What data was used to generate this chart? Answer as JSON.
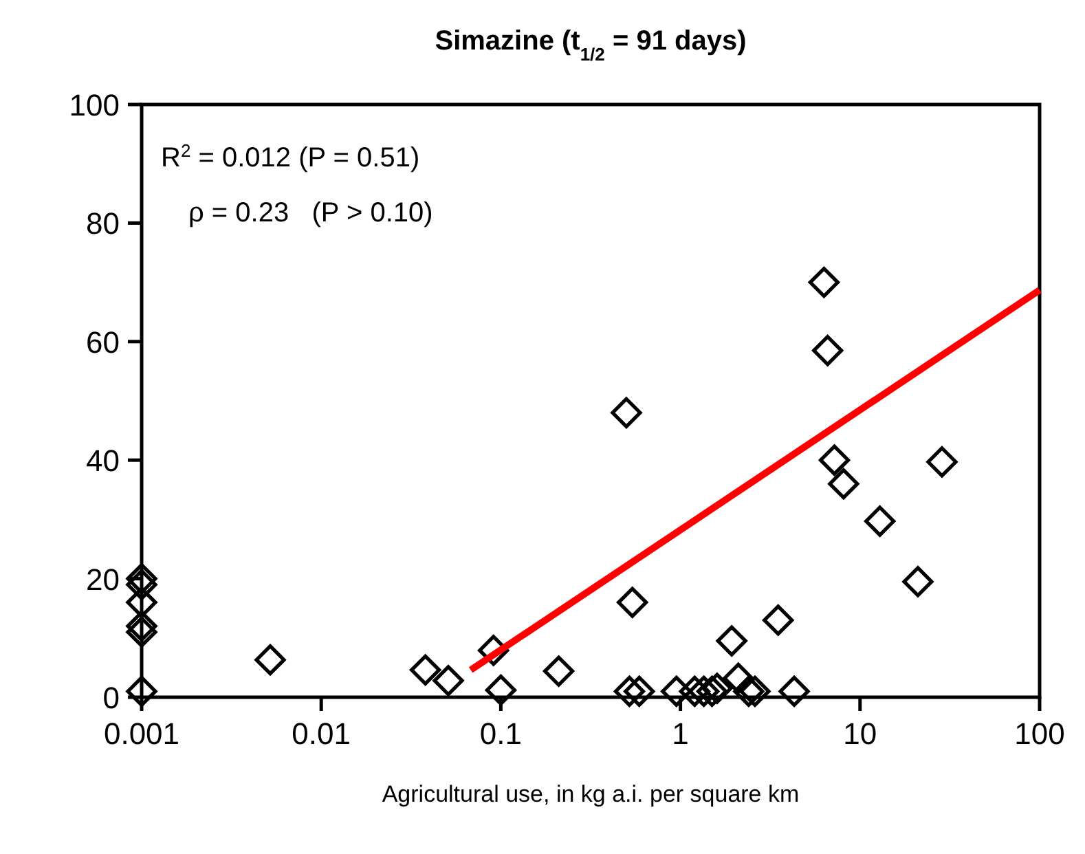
{
  "chart_data": {
    "type": "scatter",
    "title": "Simazine (t$_{1/2}$ = 91 days)",
    "xlabel": "Agricultural use, in kg a.i. per square km",
    "log": "x",
    "grid": false,
    "marker": "diamond",
    "xlim": [
      0.001,
      100
    ],
    "xticks": [
      0.001,
      0.01,
      0.1,
      1,
      10,
      100
    ],
    "ylim": [
      0,
      100
    ],
    "yticks": [
      0,
      20,
      40,
      60,
      80,
      100
    ],
    "annotations": [
      "R$^{2}$ = 0.012 (P = 0.51)",
      "ρ = 0.23   (P > 0.10)"
    ],
    "series": [
      {
        "color": "#000000",
        "x": [
          0.001,
          0.001,
          0.001,
          0.001,
          0.001,
          0.001,
          0.0052,
          0.038,
          0.051,
          0.091,
          0.1,
          0.21,
          0.5,
          0.54,
          0.52,
          0.59,
          0.95,
          1.2,
          1.35,
          1.5,
          1.6,
          1.93,
          2.1,
          2.4,
          2.6,
          3.5,
          4.3,
          6.3,
          6.6,
          7.2,
          8.1,
          12.9,
          21,
          28.6
        ],
        "values": [
          1,
          11,
          12,
          16,
          19,
          20,
          6.3,
          4.6,
          2.8,
          7.9,
          1.2,
          4.4,
          48,
          16,
          1,
          1,
          1,
          1,
          1,
          1,
          1.5,
          9.5,
          3.2,
          1,
          1,
          13,
          1,
          70,
          58.5,
          40,
          36,
          29.7,
          19.5,
          39.7
        ]
      },
      {
        "type": "line",
        "color": "#ff0000",
        "marker": "none",
        "x": [
          0.068,
          100
        ],
        "values": [
          4.6,
          68.7
        ]
      }
    ]
  }
}
